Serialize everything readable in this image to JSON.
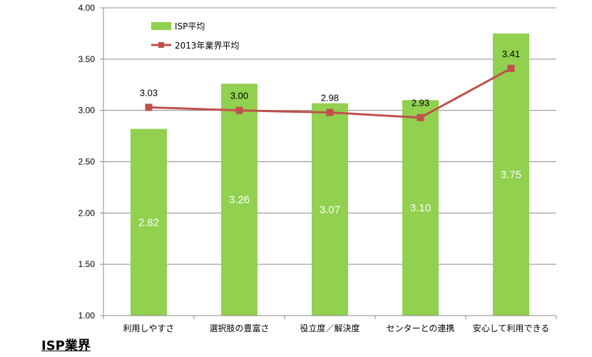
{
  "chart_data": {
    "type": "bar",
    "categories": [
      "利用しやすさ",
      "選択肢の豊富さ",
      "役立度／解決度",
      "センターとの連携",
      "安心して利用できる"
    ],
    "series": [
      {
        "name": "ISP平均",
        "type": "bar",
        "color": "#92d050",
        "values": [
          2.82,
          3.26,
          3.07,
          3.1,
          3.75
        ]
      },
      {
        "name": "2013年業界平均",
        "type": "line",
        "color": "#c0504d",
        "values": [
          3.03,
          3.0,
          2.98,
          2.93,
          3.41
        ]
      }
    ],
    "ylim": [
      1.0,
      4.0
    ],
    "yticks": [
      "1.00",
      "1.50",
      "2.00",
      "2.50",
      "3.00",
      "3.50",
      "4.00"
    ],
    "bar_labels": [
      "2.82",
      "3.26",
      "3.07",
      "3.10",
      "3.75"
    ],
    "line_labels": [
      "3.03",
      "3.00",
      "2.98",
      "2.93",
      "3.41"
    ],
    "grid": true,
    "legend": "top-left"
  },
  "footer": {
    "title": "ISP業界"
  }
}
